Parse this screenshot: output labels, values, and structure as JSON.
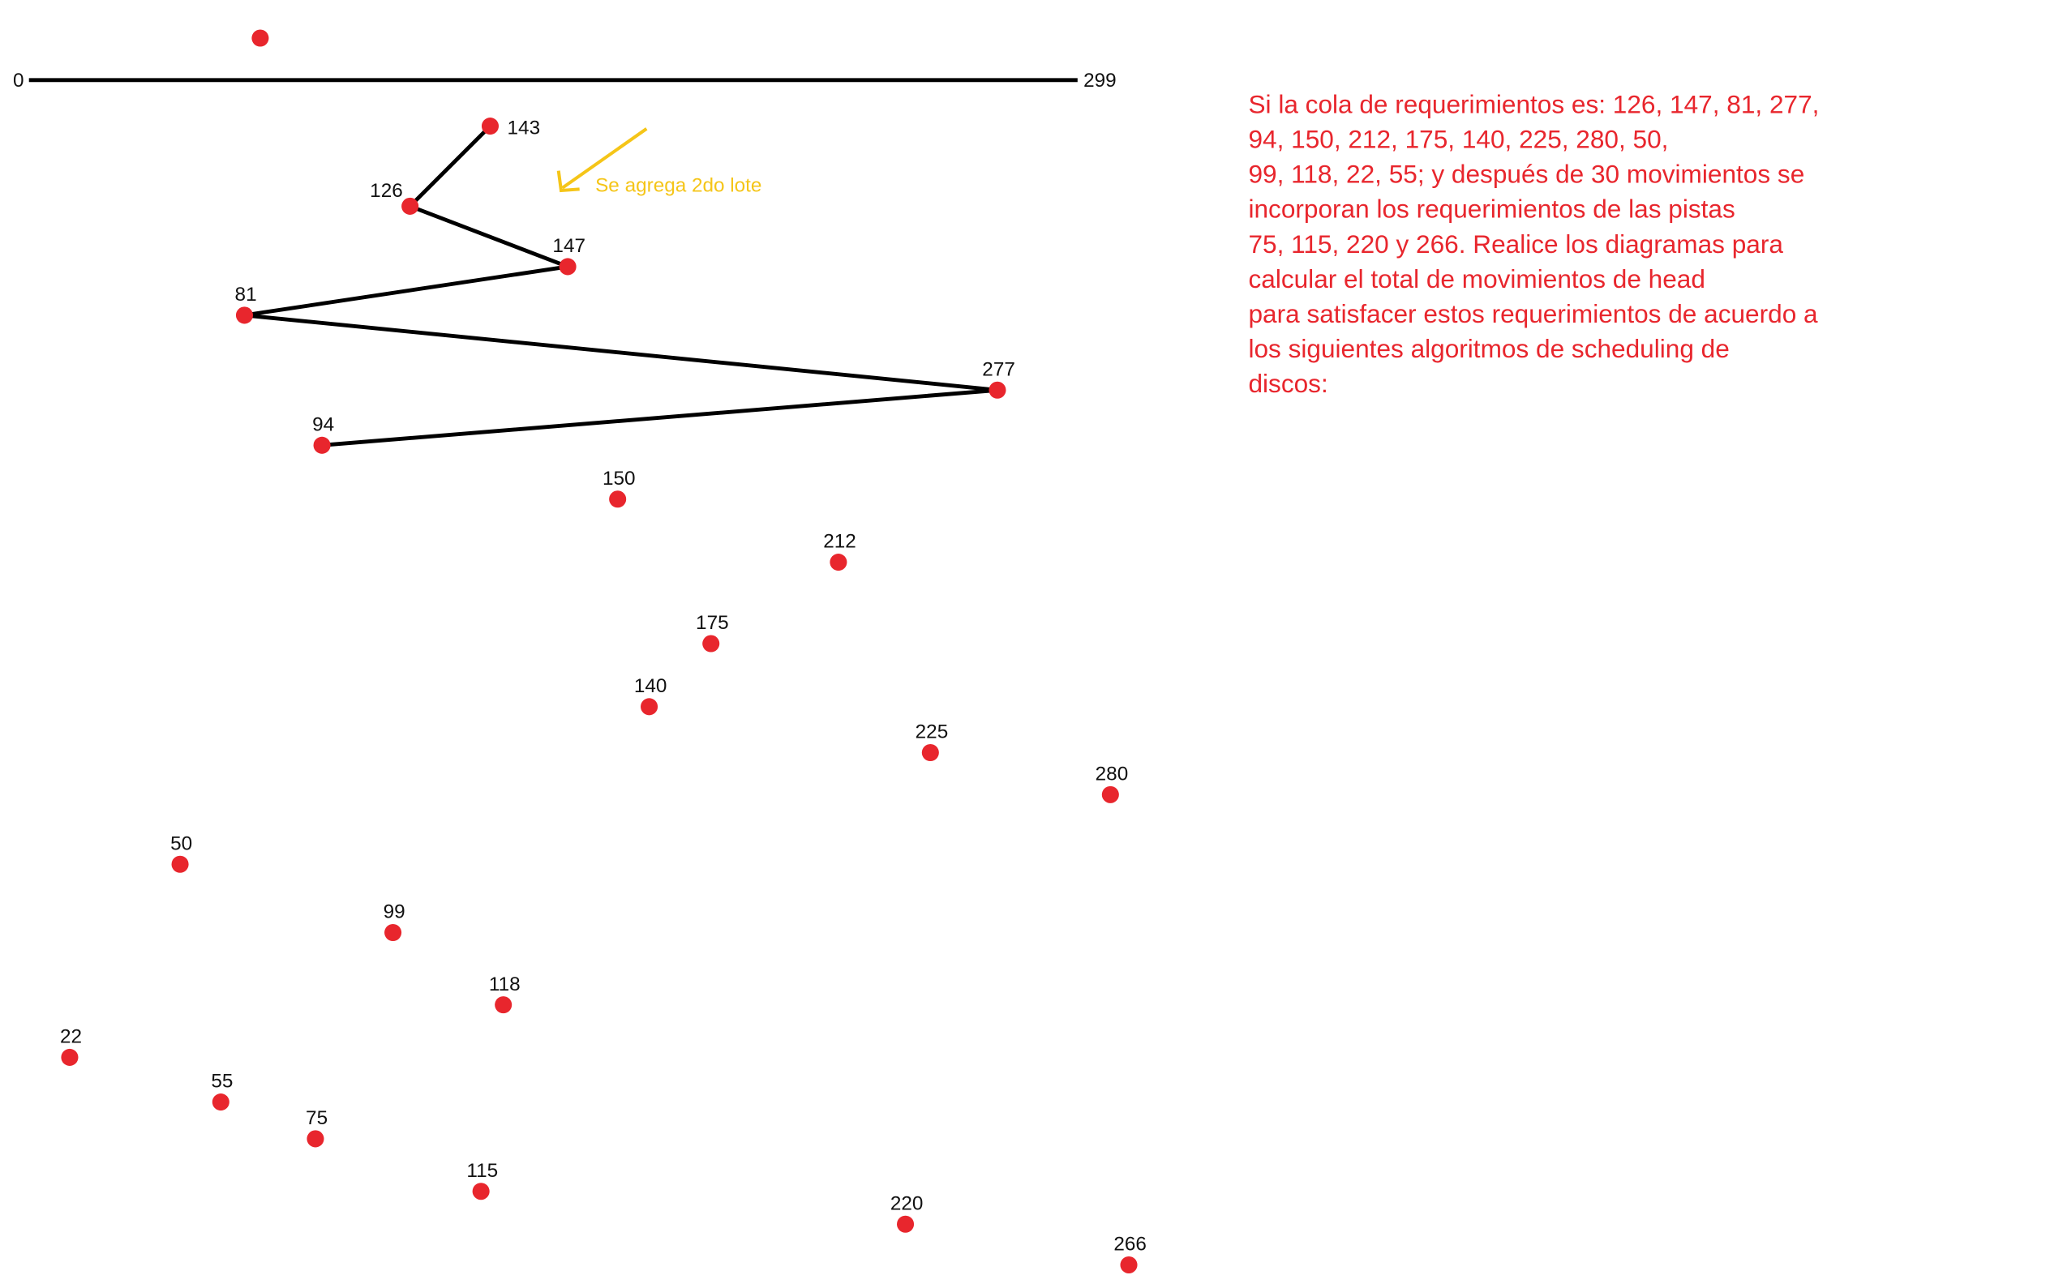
{
  "axis": {
    "start": "0",
    "end": "299"
  },
  "nodes": [
    {
      "label": "143"
    },
    {
      "label": "126"
    },
    {
      "label": "147"
    },
    {
      "label": "81"
    },
    {
      "label": "277"
    },
    {
      "label": "94"
    },
    {
      "label": "150"
    },
    {
      "label": "212"
    },
    {
      "label": "175"
    },
    {
      "label": "140"
    },
    {
      "label": "225"
    },
    {
      "label": "280"
    },
    {
      "label": "50"
    },
    {
      "label": "99"
    },
    {
      "label": "118"
    },
    {
      "label": "22"
    },
    {
      "label": "55"
    },
    {
      "label": "75"
    },
    {
      "label": "115"
    },
    {
      "label": "220"
    },
    {
      "label": "266"
    }
  ],
  "annotation": "Se agrega 2do lote",
  "problem_text": [
    "Si la cola de requerimientos es: 126, 147, 81, 277,",
    "94, 150, 212, 175, 140, 225, 280, 50,",
    "99, 118, 22, 55; y después de 30 movimientos se",
    "incorporan los requerimientos de las pistas",
    "75, 115, 220 y 266. Realice los diagramas para",
    "calcular el total de movimientos de head",
    "para satisfacer estos requerimientos de acuerdo a",
    "los siguientes algoritmos de scheduling de",
    "discos:"
  ]
}
